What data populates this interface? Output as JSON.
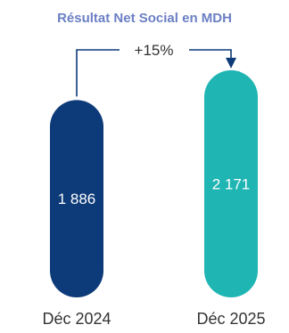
{
  "chart_data": {
    "type": "bar",
    "title": "Résultat Net Social en MDH",
    "categories": [
      "Déc 2024",
      "Déc 2025"
    ],
    "values": [
      1886,
      2171
    ],
    "value_labels": [
      "1 886",
      "2 171"
    ],
    "growth_label": "+15%",
    "colors": {
      "title": "#6b7fc4",
      "bars": [
        "#0d3a78",
        "#1fb5b3"
      ],
      "value_text": "#ffffff",
      "category_text": "#333333",
      "growth_text": "#333333",
      "arrow": "#0d3a78"
    }
  }
}
